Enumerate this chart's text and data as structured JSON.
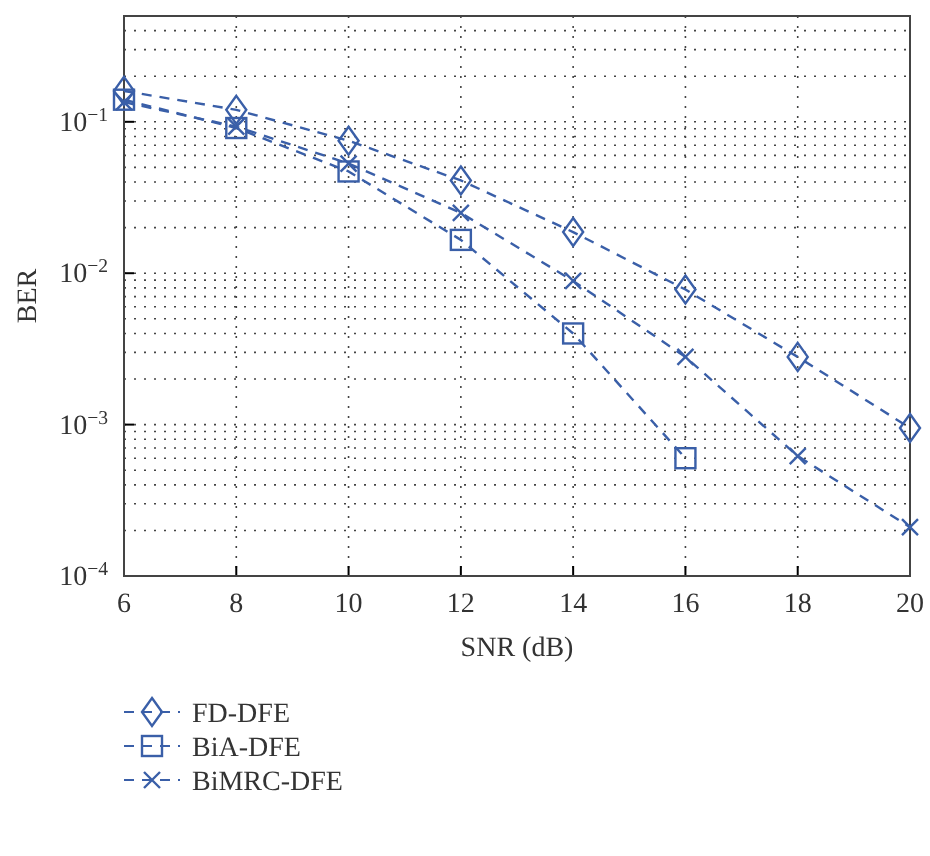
{
  "chart_data": {
    "type": "line",
    "xlabel": "SNR (dB)",
    "ylabel": "BER",
    "log": true,
    "grid": true,
    "legend": "bottom",
    "line_style": "dashed",
    "x": [
      6,
      8,
      10,
      12,
      14,
      16,
      18,
      20
    ],
    "xlim": [
      6,
      20
    ],
    "xticks": [
      6,
      8,
      10,
      12,
      14,
      16,
      18,
      20
    ],
    "ylim": [
      0.0001,
      0.5
    ],
    "yticks": [
      {
        "value": 0.0001,
        "label": "10$^{−4}$"
      },
      {
        "value": 0.001,
        "label": "10$^{−3}$"
      },
      {
        "value": 0.01,
        "label": "10$^{−2}$"
      },
      {
        "value": 0.1,
        "label": "10$^{−1}$"
      }
    ],
    "series": [
      {
        "name": "FD-DFE",
        "color": "#3a5fa8",
        "marker": "diamond",
        "values": [
          0.16,
          0.12,
          0.075,
          0.041,
          0.0187,
          0.0078,
          0.0028,
          0.00095
        ]
      },
      {
        "name": "BiA-DFE",
        "color": "#3a5fa8",
        "marker": "square",
        "values": [
          0.14,
          0.091,
          0.047,
          0.0166,
          0.004,
          0.0006,
          null,
          null
        ]
      },
      {
        "name": "BiMRC-DFE",
        "color": "#3a5fa8",
        "marker": "cross",
        "values": [
          0.135,
          0.093,
          0.053,
          0.025,
          0.0089,
          0.0028,
          0.00062,
          0.00021
        ]
      }
    ]
  }
}
